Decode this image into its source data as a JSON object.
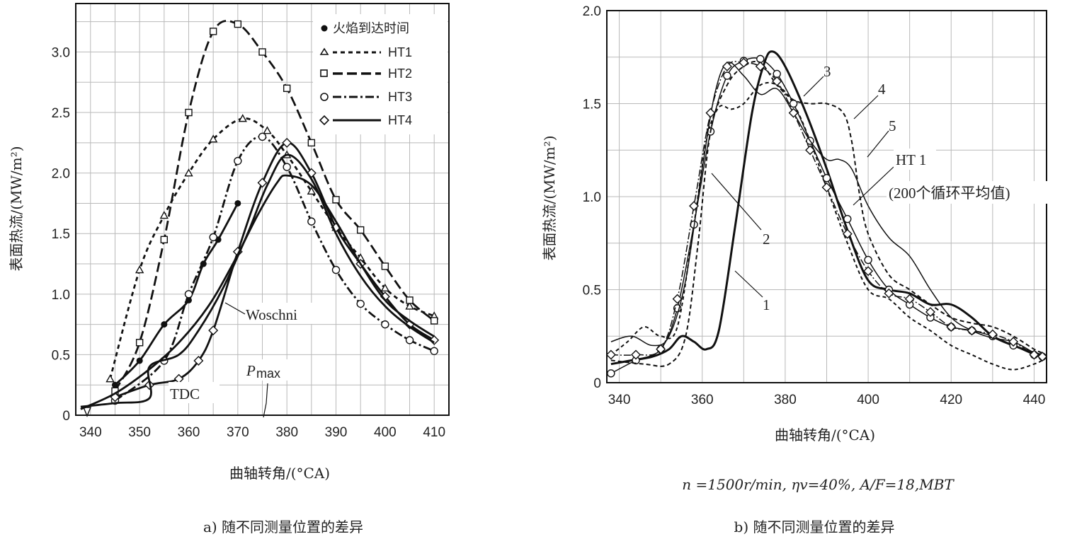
{
  "chart_data": [
    {
      "type": "line",
      "xlabel": "曲轴转角/(°CA)",
      "ylabel": "表面热流/(MW/m²)",
      "caption": "a) 随不同测量位置的差异",
      "xlim": [
        337,
        413
      ],
      "ylim": [
        0,
        3.4
      ],
      "xticks": [
        340,
        350,
        360,
        370,
        380,
        390,
        400,
        410
      ],
      "yticks": [
        0,
        0.5,
        1.0,
        1.5,
        2.0,
        2.5,
        3.0
      ],
      "ytick_labels": [
        "0",
        "0.5",
        "1.0",
        "1.5",
        "2.0",
        "2.5",
        "3.0"
      ],
      "grid": true,
      "legend": "top-right",
      "series": [
        {
          "name": "火焰到达时间",
          "marker": "dot",
          "dash": "solid",
          "x": [
            345,
            350,
            355,
            360,
            363,
            366,
            370
          ],
          "y": [
            0.25,
            0.45,
            0.75,
            0.95,
            1.25,
            1.45,
            1.75
          ]
        },
        {
          "name": "HT1",
          "marker": "triangle",
          "dash": "6,5",
          "x": [
            344,
            350,
            355,
            360,
            365,
            371,
            376,
            380,
            385,
            390,
            395,
            400,
            405,
            410
          ],
          "y": [
            0.3,
            1.2,
            1.65,
            2.0,
            2.28,
            2.45,
            2.35,
            2.15,
            1.85,
            1.55,
            1.3,
            1.05,
            0.9,
            0.82
          ]
        },
        {
          "name": "HT2",
          "marker": "square",
          "dash": "14,6",
          "x": [
            345,
            350,
            355,
            360,
            365,
            370,
            375,
            380,
            385,
            390,
            395,
            400,
            405,
            410
          ],
          "y": [
            0.2,
            0.6,
            1.45,
            2.5,
            3.17,
            3.23,
            3.0,
            2.7,
            2.25,
            1.78,
            1.53,
            1.23,
            0.95,
            0.78
          ]
        },
        {
          "name": "HT3",
          "marker": "circle",
          "dash": "12,4,3,4",
          "x": [
            345,
            355,
            360,
            365,
            370,
            375,
            380,
            385,
            390,
            395,
            400,
            405,
            410
          ],
          "y": [
            0.12,
            0.45,
            1.0,
            1.47,
            2.1,
            2.3,
            2.05,
            1.6,
            1.2,
            0.92,
            0.75,
            0.62,
            0.53
          ]
        },
        {
          "name": "HT4",
          "marker": "diamond",
          "dash": "solid",
          "x": [
            345,
            352,
            358,
            362,
            365,
            370,
            375,
            380,
            385,
            390,
            395,
            400,
            405,
            410
          ],
          "y": [
            0.15,
            0.25,
            0.3,
            0.45,
            0.7,
            1.35,
            1.92,
            2.25,
            2.0,
            1.55,
            1.25,
            0.98,
            0.75,
            0.62
          ]
        },
        {
          "name": "Woschni",
          "marker": "none",
          "dash": "solid",
          "x": [
            338,
            345,
            352,
            358,
            364,
            369,
            374,
            378,
            380,
            385,
            390,
            395,
            400,
            405,
            410
          ],
          "y": [
            0.05,
            0.18,
            0.38,
            0.6,
            0.9,
            1.25,
            1.65,
            1.92,
            1.98,
            1.9,
            1.6,
            1.25,
            0.95,
            0.78,
            0.65
          ]
        },
        {
          "name": "",
          "marker": "none",
          "dash": "solid",
          "x": [
            338,
            345,
            352,
            352,
            358,
            362,
            367,
            372,
            376,
            380,
            385,
            390,
            395,
            400,
            405,
            410
          ],
          "y": [
            0.07,
            0.1,
            0.14,
            0.4,
            0.5,
            0.7,
            1.05,
            1.5,
            1.9,
            2.15,
            1.95,
            1.5,
            1.15,
            0.9,
            0.73,
            0.6
          ]
        }
      ],
      "annotations": {
        "woschni": "Woschni",
        "tdc": "TDC",
        "pmax_main": "P",
        "pmax_sub": "max"
      }
    },
    {
      "type": "line",
      "xlabel": "曲轴转角/(°CA)",
      "ylabel": "表面热流/(MW/m²)",
      "condition": "n =1500r/min,  ηv=40%,  A/F=18,MBT",
      "caption": "b) 随不同测量位置的差异",
      "xlim": [
        337,
        443
      ],
      "ylim": [
        0,
        2.0
      ],
      "xticks": [
        340,
        360,
        380,
        400,
        420,
        440
      ],
      "yticks": [
        0,
        0.5,
        1.0,
        1.5,
        2.0
      ],
      "ytick_labels": [
        "0",
        "0.5",
        "1.0",
        "1.5",
        "2.0"
      ],
      "grid": true,
      "series": [
        {
          "name": "1",
          "marker": "none",
          "dash": "solid",
          "width": 3,
          "x": [
            338,
            343,
            348,
            352,
            355,
            358,
            361,
            364,
            368,
            372,
            375,
            377,
            380,
            385,
            390,
            395,
            400,
            405,
            410,
            415,
            420,
            425,
            430,
            435,
            440,
            442
          ],
          "y": [
            0.1,
            0.12,
            0.14,
            0.18,
            0.25,
            0.22,
            0.18,
            0.28,
            0.85,
            1.45,
            1.72,
            1.78,
            1.7,
            1.45,
            1.15,
            0.82,
            0.55,
            0.5,
            0.48,
            0.42,
            0.42,
            0.35,
            0.25,
            0.2,
            0.16,
            0.15
          ]
        },
        {
          "name": "2",
          "marker": "none",
          "dash": "5,4",
          "width": 2,
          "x": [
            338,
            342,
            346,
            350,
            354,
            358,
            361,
            364,
            367,
            370,
            374,
            378,
            382,
            386,
            390,
            395,
            400,
            405,
            410,
            415,
            420,
            425,
            430,
            435,
            440,
            442
          ],
          "y": [
            0.15,
            0.22,
            0.3,
            0.25,
            0.3,
            0.85,
            1.3,
            1.48,
            1.47,
            1.5,
            1.6,
            1.6,
            1.5,
            1.3,
            1.05,
            0.75,
            0.5,
            0.45,
            0.35,
            0.28,
            0.2,
            0.15,
            0.1,
            0.07,
            0.1,
            0.12
          ]
        },
        {
          "name": "3",
          "marker": "circle",
          "dash": "solid",
          "width": 1.5,
          "x": [
            338,
            344,
            350,
            354,
            358,
            362,
            366,
            370,
            374,
            378,
            382,
            386,
            390,
            395,
            400,
            405,
            410,
            415,
            420,
            425,
            430,
            435,
            440,
            442
          ],
          "y": [
            0.05,
            0.12,
            0.18,
            0.4,
            0.85,
            1.35,
            1.65,
            1.73,
            1.74,
            1.66,
            1.5,
            1.3,
            1.1,
            0.88,
            0.66,
            0.5,
            0.42,
            0.35,
            0.3,
            0.28,
            0.25,
            0.2,
            0.15,
            0.14
          ]
        },
        {
          "name": "4",
          "marker": "none",
          "dash": "6,4",
          "width": 2,
          "x": [
            338,
            346,
            352,
            356,
            359,
            362,
            366,
            370,
            374,
            378,
            382,
            386,
            390,
            394,
            396,
            398,
            400,
            405,
            410,
            415,
            420,
            425,
            430,
            435,
            440,
            442
          ],
          "y": [
            0.12,
            0.1,
            0.1,
            0.25,
            0.75,
            1.35,
            1.6,
            1.7,
            1.72,
            1.6,
            1.52,
            1.5,
            1.5,
            1.45,
            1.3,
            1.0,
            0.8,
            0.58,
            0.5,
            0.42,
            0.35,
            0.32,
            0.3,
            0.25,
            0.18,
            0.16
          ]
        },
        {
          "name": "5",
          "marker": "none",
          "dash": "solid",
          "width": 1.5,
          "x": [
            338,
            343,
            348,
            352,
            356,
            360,
            363,
            366,
            370,
            374,
            378,
            382,
            386,
            390,
            393,
            396,
            400,
            405,
            410,
            415,
            420,
            425,
            430,
            435,
            440,
            442
          ],
          "y": [
            0.22,
            0.25,
            0.2,
            0.25,
            0.55,
            1.15,
            1.55,
            1.72,
            1.65,
            1.55,
            1.58,
            1.45,
            1.3,
            1.2,
            1.2,
            1.15,
            0.95,
            0.78,
            0.68,
            0.5,
            0.35,
            0.28,
            0.24,
            0.22,
            0.16,
            0.14
          ]
        },
        {
          "name": "HT 1",
          "marker": "diamond",
          "dash": "10,3,2,3",
          "width": 1.5,
          "x": [
            338,
            344,
            350,
            354,
            358,
            362,
            366,
            370,
            374,
            378,
            382,
            386,
            390,
            395,
            400,
            405,
            410,
            415,
            420,
            425,
            430,
            435,
            440,
            442
          ],
          "y": [
            0.15,
            0.15,
            0.18,
            0.45,
            0.95,
            1.45,
            1.7,
            1.72,
            1.7,
            1.62,
            1.45,
            1.25,
            1.05,
            0.8,
            0.6,
            0.48,
            0.45,
            0.38,
            0.3,
            0.28,
            0.26,
            0.22,
            0.15,
            0.14
          ]
        }
      ],
      "annotations": {
        "l3": "3",
        "l4": "4",
        "l5": "5",
        "l2": "2",
        "l1": "1",
        "ht1_label": "HT 1",
        "ht1_note": "(200个循环平均值)"
      }
    }
  ]
}
